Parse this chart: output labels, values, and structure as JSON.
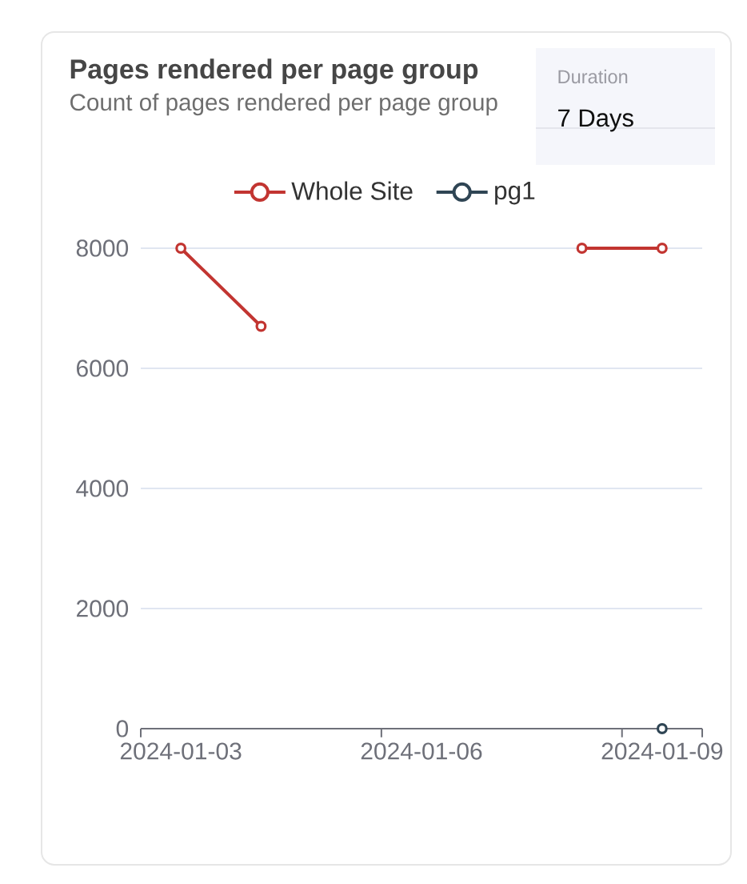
{
  "chart_data": {
    "type": "line",
    "title": "Pages rendered per page group",
    "subtitle": "Count of pages rendered per page group",
    "categories": [
      "2024-01-03",
      null,
      null,
      "2024-01-06",
      null,
      null,
      "2024-01-09"
    ],
    "series": [
      {
        "name": "Whole Site",
        "color": "#c23531",
        "values": [
          8000,
          6700,
          null,
          null,
          null,
          8000,
          8000
        ]
      },
      {
        "name": "pg1",
        "color": "#2f4554",
        "values": [
          null,
          null,
          null,
          null,
          null,
          null,
          0
        ]
      }
    ],
    "ylim": [
      0,
      8000
    ],
    "yticks": [
      0,
      2000,
      4000,
      6000,
      8000
    ],
    "grid": "y",
    "legend": "top",
    "marker": "circle",
    "line_style": "solid",
    "annotations": [
      "Duration",
      "7 Days"
    ]
  }
}
